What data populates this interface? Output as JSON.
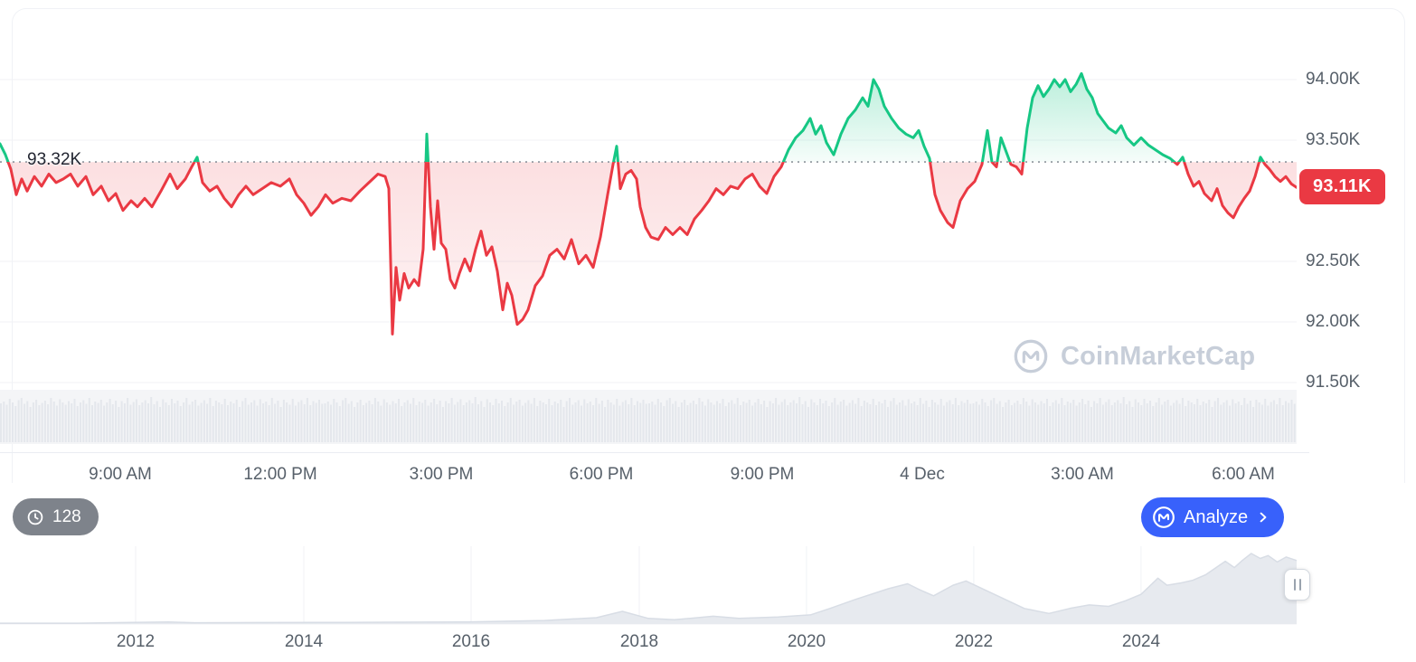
{
  "colors": {
    "red": "#ea3943",
    "green": "#16c784",
    "blue": "#3861fb",
    "axis_text": "#57606a",
    "gridline": "#f0f2f6",
    "dotted_line": "#8c939b",
    "volume_band": "#f4f5f7",
    "volume_bar": "#e4e7ec",
    "nav_fill": "#e7eaef",
    "nav_line": "#d8dde5",
    "badge_gray": "#7e838b",
    "watermark": "#c7ced9"
  },
  "watermark": {
    "text": "CoinMarketCap"
  },
  "footer": {
    "history_count": "128",
    "analyze_label": "Analyze"
  },
  "chart_data": {
    "main": {
      "type": "line",
      "y_unit": "K USD",
      "ylim": [
        91.4,
        94.3
      ],
      "grid": true,
      "baseline": {
        "label": "93.32K",
        "value": 93.32
      },
      "current_price": {
        "label": "93.11K",
        "value": 93.11
      },
      "y_ticks": [
        {
          "label": "94.00K",
          "value": 94.0
        },
        {
          "label": "93.50K",
          "value": 93.5
        },
        {
          "label": "92.50K",
          "value": 92.5
        },
        {
          "label": "92.00K",
          "value": 92.0
        },
        {
          "label": "91.50K",
          "value": 91.5
        }
      ],
      "x_ticks": [
        {
          "label": "9:00 AM",
          "t": 0.0927
        },
        {
          "label": "12:00 PM",
          "t": 0.2162
        },
        {
          "label": "3:00 PM",
          "t": 0.3403
        },
        {
          "label": "6:00 PM",
          "t": 0.4637
        },
        {
          "label": "9:00 PM",
          "t": 0.5879
        },
        {
          "label": "4 Dec",
          "t": 0.7113
        },
        {
          "label": "3:00 AM",
          "t": 0.8347
        },
        {
          "label": "6:00 AM",
          "t": 0.9589
        }
      ],
      "x_domain": [
        0,
        1434
      ],
      "points": [
        [
          0,
          93.47
        ],
        [
          6,
          93.38
        ],
        [
          12,
          93.26
        ],
        [
          18,
          93.05
        ],
        [
          24,
          93.18
        ],
        [
          30,
          93.08
        ],
        [
          38,
          93.2
        ],
        [
          46,
          93.12
        ],
        [
          54,
          93.22
        ],
        [
          62,
          93.15
        ],
        [
          70,
          93.18
        ],
        [
          78,
          93.22
        ],
        [
          86,
          93.12
        ],
        [
          95,
          93.2
        ],
        [
          103,
          93.05
        ],
        [
          112,
          93.12
        ],
        [
          120,
          93.0
        ],
        [
          128,
          93.06
        ],
        [
          136,
          92.92
        ],
        [
          145,
          93.0
        ],
        [
          152,
          92.95
        ],
        [
          160,
          93.02
        ],
        [
          168,
          92.95
        ],
        [
          178,
          93.08
        ],
        [
          188,
          93.22
        ],
        [
          196,
          93.1
        ],
        [
          205,
          93.18
        ],
        [
          212,
          93.28
        ],
        [
          218,
          93.36
        ],
        [
          224,
          93.15
        ],
        [
          232,
          93.08
        ],
        [
          240,
          93.12
        ],
        [
          248,
          93.02
        ],
        [
          256,
          92.95
        ],
        [
          264,
          93.05
        ],
        [
          272,
          93.12
        ],
        [
          280,
          93.05
        ],
        [
          290,
          93.1
        ],
        [
          300,
          93.15
        ],
        [
          310,
          93.12
        ],
        [
          320,
          93.18
        ],
        [
          328,
          93.05
        ],
        [
          336,
          92.98
        ],
        [
          344,
          92.88
        ],
        [
          352,
          92.95
        ],
        [
          360,
          93.05
        ],
        [
          368,
          92.98
        ],
        [
          378,
          93.02
        ],
        [
          388,
          93.0
        ],
        [
          398,
          93.08
        ],
        [
          408,
          93.15
        ],
        [
          418,
          93.22
        ],
        [
          426,
          93.2
        ],
        [
          430,
          93.1
        ],
        [
          434,
          91.9
        ],
        [
          438,
          92.45
        ],
        [
          442,
          92.18
        ],
        [
          447,
          92.4
        ],
        [
          452,
          92.28
        ],
        [
          458,
          92.35
        ],
        [
          463,
          92.3
        ],
        [
          468,
          92.6
        ],
        [
          472,
          93.55
        ],
        [
          476,
          92.95
        ],
        [
          480,
          92.6
        ],
        [
          484,
          93.0
        ],
        [
          488,
          92.65
        ],
        [
          493,
          92.6
        ],
        [
          498,
          92.35
        ],
        [
          503,
          92.28
        ],
        [
          508,
          92.4
        ],
        [
          514,
          92.52
        ],
        [
          520,
          92.42
        ],
        [
          526,
          92.6
        ],
        [
          532,
          92.75
        ],
        [
          538,
          92.55
        ],
        [
          544,
          92.62
        ],
        [
          550,
          92.42
        ],
        [
          556,
          92.1
        ],
        [
          561,
          92.32
        ],
        [
          566,
          92.22
        ],
        [
          572,
          91.98
        ],
        [
          578,
          92.02
        ],
        [
          584,
          92.1
        ],
        [
          592,
          92.3
        ],
        [
          600,
          92.38
        ],
        [
          608,
          92.55
        ],
        [
          616,
          92.6
        ],
        [
          624,
          92.52
        ],
        [
          632,
          92.68
        ],
        [
          640,
          92.48
        ],
        [
          648,
          92.55
        ],
        [
          656,
          92.45
        ],
        [
          664,
          92.7
        ],
        [
          672,
          93.05
        ],
        [
          678,
          93.3
        ],
        [
          682,
          93.45
        ],
        [
          686,
          93.1
        ],
        [
          692,
          93.22
        ],
        [
          698,
          93.25
        ],
        [
          704,
          93.18
        ],
        [
          708,
          92.95
        ],
        [
          714,
          92.78
        ],
        [
          720,
          92.7
        ],
        [
          728,
          92.68
        ],
        [
          736,
          92.78
        ],
        [
          744,
          92.72
        ],
        [
          752,
          92.78
        ],
        [
          760,
          92.72
        ],
        [
          768,
          92.85
        ],
        [
          776,
          92.92
        ],
        [
          784,
          93.0
        ],
        [
          792,
          93.1
        ],
        [
          800,
          93.05
        ],
        [
          808,
          93.12
        ],
        [
          816,
          93.1
        ],
        [
          824,
          93.18
        ],
        [
          832,
          93.22
        ],
        [
          840,
          93.12
        ],
        [
          848,
          93.06
        ],
        [
          856,
          93.2
        ],
        [
          864,
          93.28
        ],
        [
          872,
          93.42
        ],
        [
          880,
          93.52
        ],
        [
          888,
          93.58
        ],
        [
          896,
          93.68
        ],
        [
          902,
          93.55
        ],
        [
          908,
          93.62
        ],
        [
          914,
          93.48
        ],
        [
          922,
          93.38
        ],
        [
          930,
          93.55
        ],
        [
          938,
          93.68
        ],
        [
          946,
          93.75
        ],
        [
          954,
          93.85
        ],
        [
          960,
          93.78
        ],
        [
          966,
          94.0
        ],
        [
          972,
          93.92
        ],
        [
          978,
          93.78
        ],
        [
          986,
          93.68
        ],
        [
          994,
          93.6
        ],
        [
          1002,
          93.55
        ],
        [
          1010,
          93.52
        ],
        [
          1016,
          93.58
        ],
        [
          1022,
          93.45
        ],
        [
          1028,
          93.35
        ],
        [
          1034,
          93.05
        ],
        [
          1040,
          92.92
        ],
        [
          1048,
          92.82
        ],
        [
          1054,
          92.78
        ],
        [
          1062,
          93.0
        ],
        [
          1070,
          93.1
        ],
        [
          1078,
          93.16
        ],
        [
          1086,
          93.3
        ],
        [
          1092,
          93.58
        ],
        [
          1097,
          93.32
        ],
        [
          1102,
          93.28
        ],
        [
          1107,
          93.52
        ],
        [
          1112,
          93.42
        ],
        [
          1118,
          93.3
        ],
        [
          1124,
          93.28
        ],
        [
          1130,
          93.22
        ],
        [
          1136,
          93.6
        ],
        [
          1142,
          93.85
        ],
        [
          1148,
          93.95
        ],
        [
          1154,
          93.86
        ],
        [
          1160,
          93.92
        ],
        [
          1166,
          94.0
        ],
        [
          1172,
          93.94
        ],
        [
          1178,
          94.0
        ],
        [
          1184,
          93.9
        ],
        [
          1190,
          93.96
        ],
        [
          1196,
          94.05
        ],
        [
          1202,
          93.92
        ],
        [
          1208,
          93.85
        ],
        [
          1214,
          93.72
        ],
        [
          1220,
          93.66
        ],
        [
          1226,
          93.6
        ],
        [
          1234,
          93.56
        ],
        [
          1240,
          93.62
        ],
        [
          1246,
          93.52
        ],
        [
          1254,
          93.46
        ],
        [
          1262,
          93.52
        ],
        [
          1270,
          93.46
        ],
        [
          1278,
          93.42
        ],
        [
          1286,
          93.38
        ],
        [
          1294,
          93.35
        ],
        [
          1302,
          93.3
        ],
        [
          1308,
          93.36
        ],
        [
          1314,
          93.22
        ],
        [
          1320,
          93.12
        ],
        [
          1326,
          93.16
        ],
        [
          1332,
          93.06
        ],
        [
          1340,
          93.0
        ],
        [
          1346,
          93.1
        ],
        [
          1352,
          92.96
        ],
        [
          1358,
          92.9
        ],
        [
          1364,
          92.86
        ],
        [
          1370,
          92.95
        ],
        [
          1376,
          93.02
        ],
        [
          1382,
          93.08
        ],
        [
          1388,
          93.2
        ],
        [
          1394,
          93.36
        ],
        [
          1399,
          93.3
        ],
        [
          1404,
          93.26
        ],
        [
          1410,
          93.2
        ],
        [
          1416,
          93.16
        ],
        [
          1422,
          93.2
        ],
        [
          1428,
          93.14
        ],
        [
          1434,
          93.11
        ]
      ],
      "volume_profile": [
        0.78,
        0.82,
        0.75,
        0.88,
        0.8,
        0.72,
        0.85,
        0.9,
        0.77,
        0.83,
        0.7,
        0.8,
        0.86,
        0.74,
        0.79,
        0.84,
        0.76,
        0.9,
        0.82,
        0.73,
        0.87,
        0.8,
        0.75,
        0.83,
        0.78,
        0.88,
        0.72,
        0.8,
        0.85,
        0.77,
        0.9,
        0.74,
        0.82,
        0.79,
        0.86,
        0.73,
        0.8,
        0.88,
        0.76,
        0.84,
        0.7,
        0.83,
        0.78,
        0.9,
        0.75,
        0.81,
        0.87,
        0.74,
        0.8,
        0.85,
        0.78,
        0.92,
        0.76,
        0.83,
        0.7,
        0.87,
        0.8,
        0.74,
        0.88,
        0.78,
        0.84,
        0.72,
        0.8,
        0.9,
        0.75,
        0.82,
        0.86,
        0.73,
        0.79,
        0.85,
        0.77,
        0.9,
        0.72,
        0.84,
        0.8,
        0.76,
        0.88,
        0.74,
        0.82,
        0.78,
        0.86,
        0.7,
        0.83,
        0.9,
        0.75,
        0.8,
        0.85,
        0.73,
        0.87,
        0.78,
        0.82,
        0.74,
        0.9,
        0.77,
        0.84,
        0.7,
        0.86,
        0.8,
        0.75,
        0.88,
        0.73,
        0.81,
        0.85,
        0.76,
        0.9,
        0.74,
        0.83,
        0.79,
        0.86,
        0.77
      ]
    },
    "navigator": {
      "type": "area",
      "year_ticks": [
        {
          "label": "2012",
          "t": 0.1046
        },
        {
          "label": "2014",
          "t": 0.2343
        },
        {
          "label": "2016",
          "t": 0.3633
        },
        {
          "label": "2018",
          "t": 0.493
        },
        {
          "label": "2020",
          "t": 0.622
        },
        {
          "label": "2022",
          "t": 0.751
        },
        {
          "label": "2024",
          "t": 0.88
        }
      ],
      "points": [
        [
          0,
          0.012
        ],
        [
          0.06,
          0.012
        ],
        [
          0.13,
          0.03
        ],
        [
          0.15,
          0.018
        ],
        [
          0.2,
          0.02
        ],
        [
          0.25,
          0.022
        ],
        [
          0.3,
          0.025
        ],
        [
          0.36,
          0.03
        ],
        [
          0.42,
          0.05
        ],
        [
          0.46,
          0.09
        ],
        [
          0.48,
          0.18
        ],
        [
          0.5,
          0.08
        ],
        [
          0.52,
          0.06
        ],
        [
          0.55,
          0.11
        ],
        [
          0.57,
          0.08
        ],
        [
          0.6,
          0.1
        ],
        [
          0.625,
          0.13
        ],
        [
          0.64,
          0.22
        ],
        [
          0.66,
          0.35
        ],
        [
          0.685,
          0.5
        ],
        [
          0.7,
          0.57
        ],
        [
          0.71,
          0.48
        ],
        [
          0.72,
          0.4
        ],
        [
          0.735,
          0.55
        ],
        [
          0.745,
          0.61
        ],
        [
          0.76,
          0.48
        ],
        [
          0.775,
          0.35
        ],
        [
          0.79,
          0.22
        ],
        [
          0.809,
          0.15
        ],
        [
          0.825,
          0.22
        ],
        [
          0.84,
          0.27
        ],
        [
          0.855,
          0.25
        ],
        [
          0.868,
          0.33
        ],
        [
          0.88,
          0.42
        ],
        [
          0.893,
          0.65
        ],
        [
          0.9,
          0.55
        ],
        [
          0.91,
          0.58
        ],
        [
          0.92,
          0.62
        ],
        [
          0.93,
          0.7
        ],
        [
          0.945,
          0.89
        ],
        [
          0.952,
          0.8
        ],
        [
          0.958,
          0.9
        ],
        [
          0.965,
          1.0
        ],
        [
          0.972,
          0.93
        ],
        [
          0.978,
          0.97
        ],
        [
          0.985,
          0.88
        ],
        [
          0.992,
          0.95
        ],
        [
          1,
          0.9
        ]
      ]
    }
  }
}
